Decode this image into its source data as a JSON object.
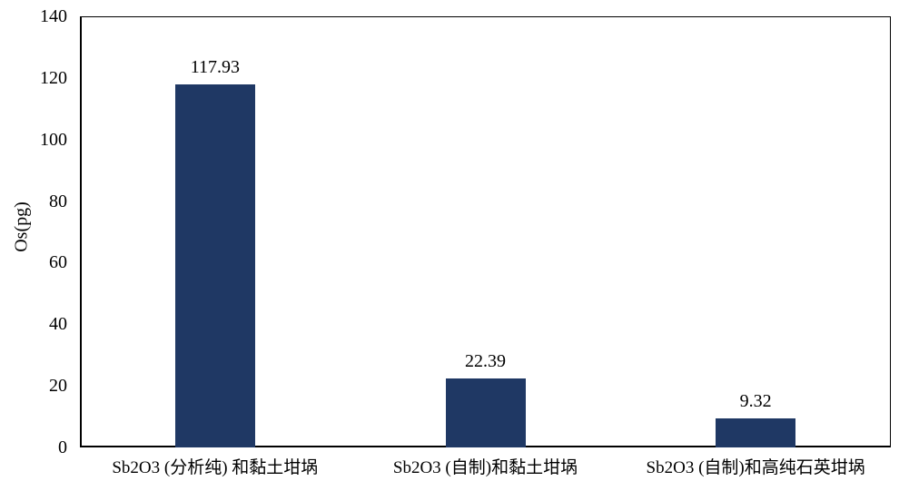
{
  "chart_data": {
    "type": "bar",
    "title": "",
    "categories": [
      "Sb2O3 (分析纯) 和黏土坩埚",
      "Sb2O3 (自制)和黏土坩埚",
      "Sb2O3 (自制)和高纯石英坩埚"
    ],
    "values": [
      117.93,
      22.39,
      9.32
    ],
    "value_labels": [
      "117.93",
      "22.39",
      "9.32"
    ],
    "xlabel": "",
    "ylabel": "Os(pg)",
    "ylim": [
      0,
      140
    ],
    "yticks": [
      0,
      20,
      40,
      60,
      80,
      100,
      120,
      140
    ],
    "grid": false,
    "legend": false,
    "colors": {
      "bar": "#1F3864",
      "axis": "#000000",
      "text": "#000000",
      "background": "#FFFFFF"
    }
  }
}
